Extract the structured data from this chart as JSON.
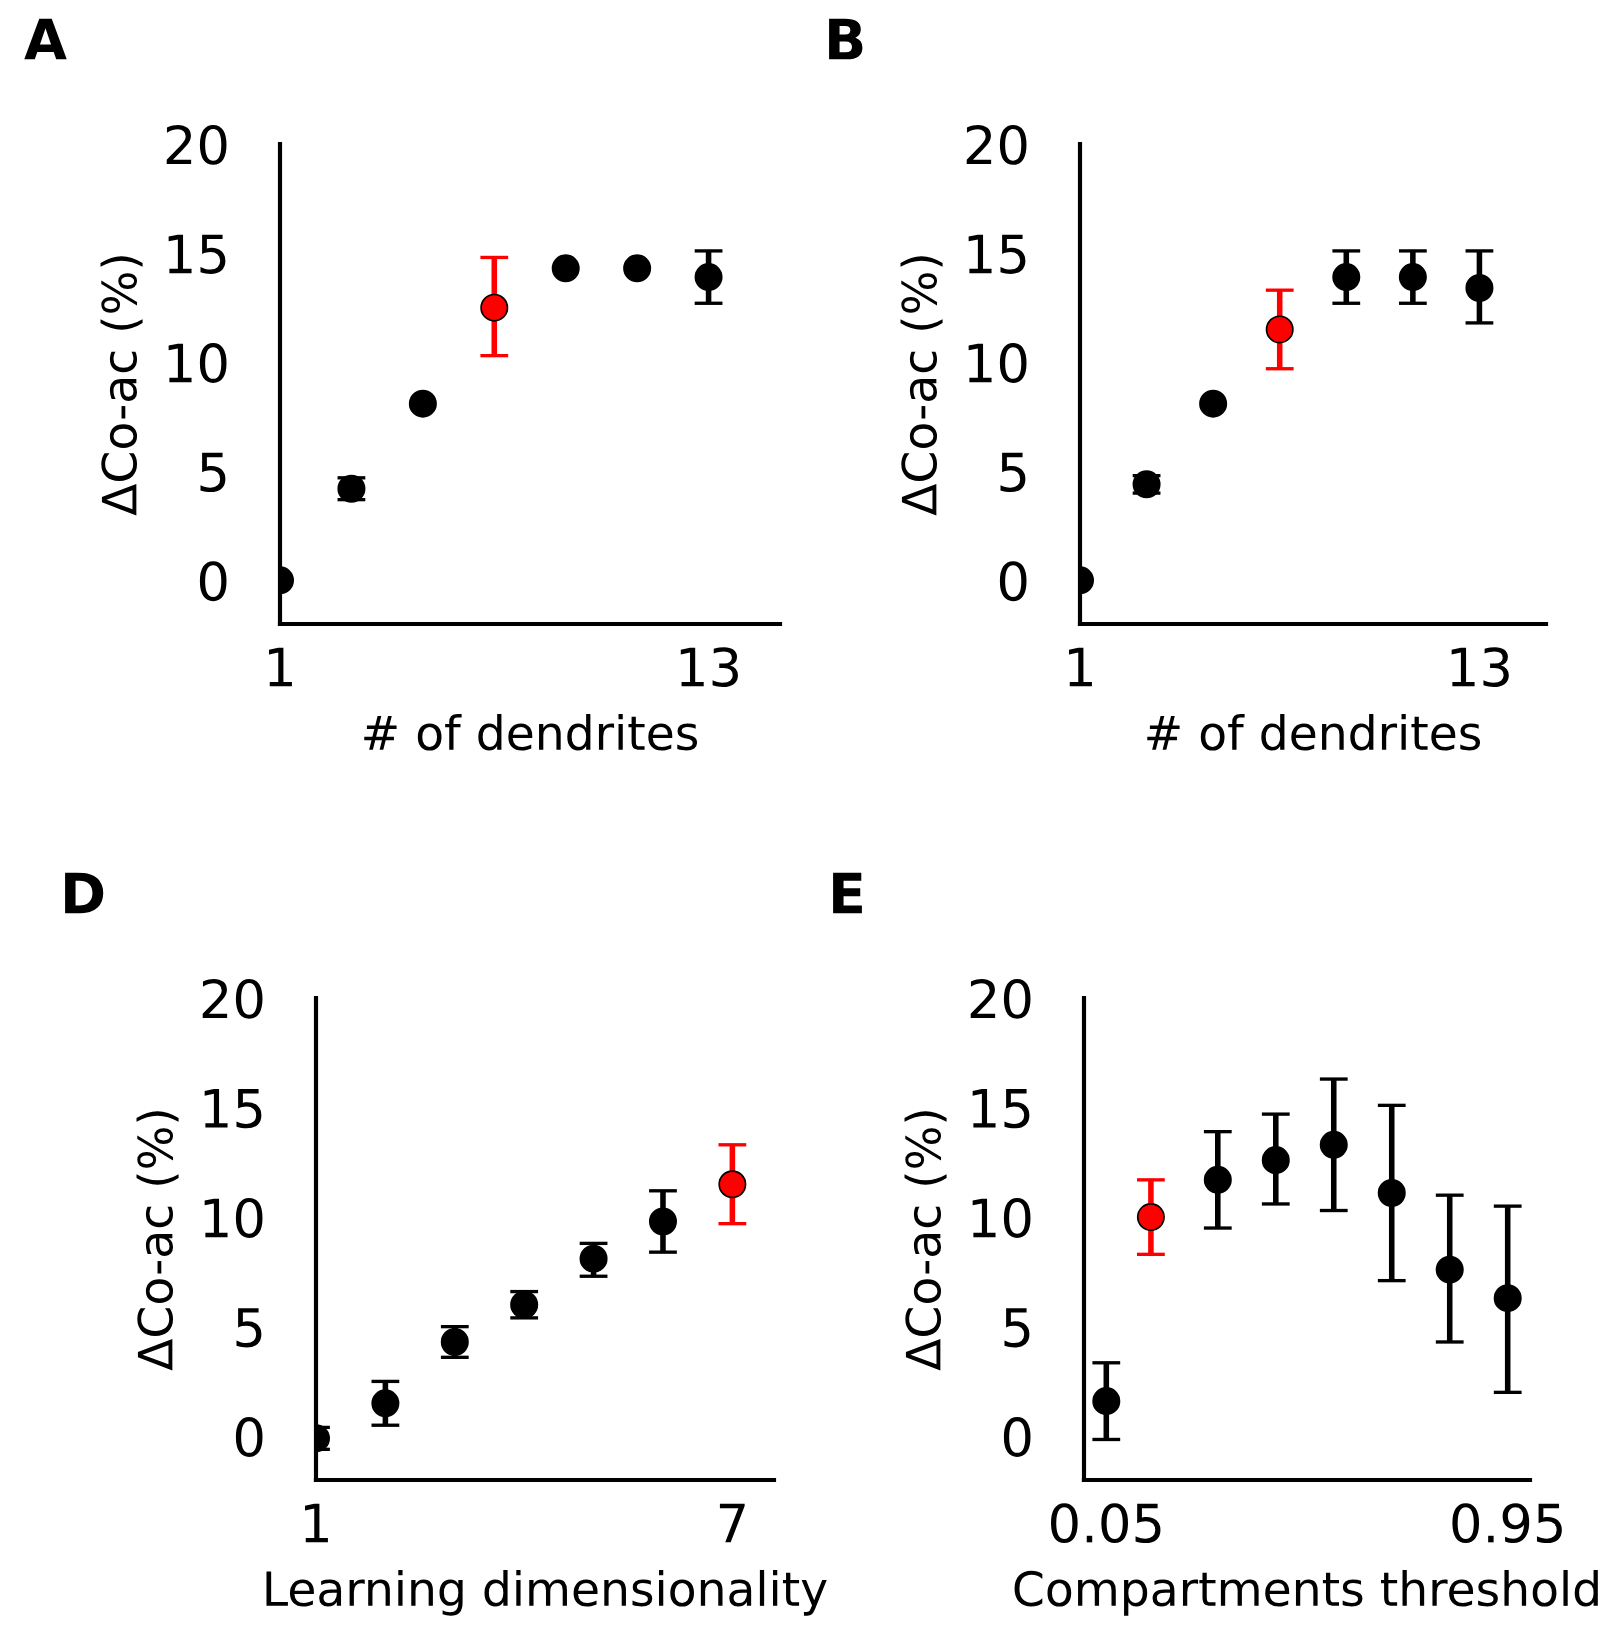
{
  "chart_data": [
    {
      "type": "scatter",
      "title": "A",
      "xlabel": "# of dendrites",
      "ylabel": "ΔCo-ac (%)",
      "marker": "circle",
      "grid": false,
      "xlim": [
        1,
        15
      ],
      "xticks": [
        1,
        13
      ],
      "ylim": [
        -2,
        20
      ],
      "yticks": [
        0,
        5,
        10,
        15,
        20
      ],
      "x": [
        1,
        3,
        5,
        7,
        9,
        11,
        13
      ],
      "values": [
        0,
        4.2,
        8.1,
        12.5,
        14.3,
        14.3,
        13.9
      ],
      "errors": [
        null,
        [
          3.7,
          4.7
        ],
        null,
        [
          10.3,
          14.8
        ],
        null,
        null,
        [
          12.7,
          15.1
        ]
      ],
      "colors": [
        "#000000",
        "#000000",
        "#000000",
        "#ff0000",
        "#000000",
        "#000000",
        "#000000"
      ]
    },
    {
      "type": "scatter",
      "title": "B",
      "xlabel": "# of dendrites",
      "ylabel": "ΔCo-ac (%)",
      "marker": "circle",
      "grid": false,
      "xlim": [
        1,
        15
      ],
      "xticks": [
        1,
        13
      ],
      "ylim": [
        -2,
        20
      ],
      "yticks": [
        0,
        5,
        10,
        15,
        20
      ],
      "x": [
        1,
        3,
        5,
        7,
        9,
        11,
        13
      ],
      "values": [
        0,
        4.4,
        8.1,
        11.5,
        13.9,
        13.9,
        13.4
      ],
      "errors": [
        null,
        [
          4.0,
          4.8
        ],
        null,
        [
          9.7,
          13.3
        ],
        [
          12.7,
          15.1
        ],
        [
          12.7,
          15.1
        ],
        [
          11.8,
          15.1
        ]
      ],
      "colors": [
        "#000000",
        "#000000",
        "#000000",
        "#ff0000",
        "#000000",
        "#000000",
        "#000000"
      ]
    },
    {
      "type": "scatter",
      "title": "D",
      "xlabel": "Learning dimensionality",
      "ylabel": "ΔCo-ac (%)",
      "marker": "circle",
      "grid": false,
      "xlim": [
        1,
        7.6
      ],
      "xticks": [
        1,
        7
      ],
      "ylim": [
        -2,
        20
      ],
      "yticks": [
        0,
        5,
        10,
        15,
        20
      ],
      "x": [
        1,
        2,
        3,
        4,
        5,
        6,
        7
      ],
      "values": [
        -0.1,
        1.5,
        4.3,
        6.0,
        8.1,
        9.8,
        11.5
      ],
      "errors": [
        [
          -0.6,
          0.4
        ],
        [
          0.5,
          2.5
        ],
        [
          3.6,
          5.0
        ],
        [
          5.4,
          6.6
        ],
        [
          7.3,
          8.8
        ],
        [
          8.4,
          11.2
        ],
        [
          9.7,
          13.3
        ]
      ],
      "colors": [
        "#000000",
        "#000000",
        "#000000",
        "#000000",
        "#000000",
        "#000000",
        "#ff0000"
      ]
    },
    {
      "type": "scatter",
      "title": "E",
      "xlabel": "Compartments threshold",
      "ylabel": "ΔCo-ac (%)",
      "marker": "circle",
      "grid": false,
      "xlim": [
        0,
        1
      ],
      "xticks": [
        0.05,
        0.95
      ],
      "ylim": [
        -2,
        20
      ],
      "yticks": [
        0,
        5,
        10,
        15,
        20
      ],
      "x": [
        0.05,
        0.15,
        0.3,
        0.43,
        0.56,
        0.69,
        0.82,
        0.95
      ],
      "values": [
        1.6,
        10.0,
        11.7,
        12.6,
        13.3,
        11.1,
        7.6,
        6.3
      ],
      "errors": [
        [
          -0.15,
          3.35
        ],
        [
          8.3,
          11.7
        ],
        [
          9.5,
          13.9
        ],
        [
          10.6,
          14.7
        ],
        [
          10.3,
          16.3
        ],
        [
          7.1,
          15.1
        ],
        [
          4.3,
          11.0
        ],
        [
          2.0,
          10.5
        ]
      ],
      "colors": [
        "#000000",
        "#ff0000",
        "#000000",
        "#000000",
        "#000000",
        "#000000",
        "#000000",
        "#000000"
      ]
    }
  ]
}
